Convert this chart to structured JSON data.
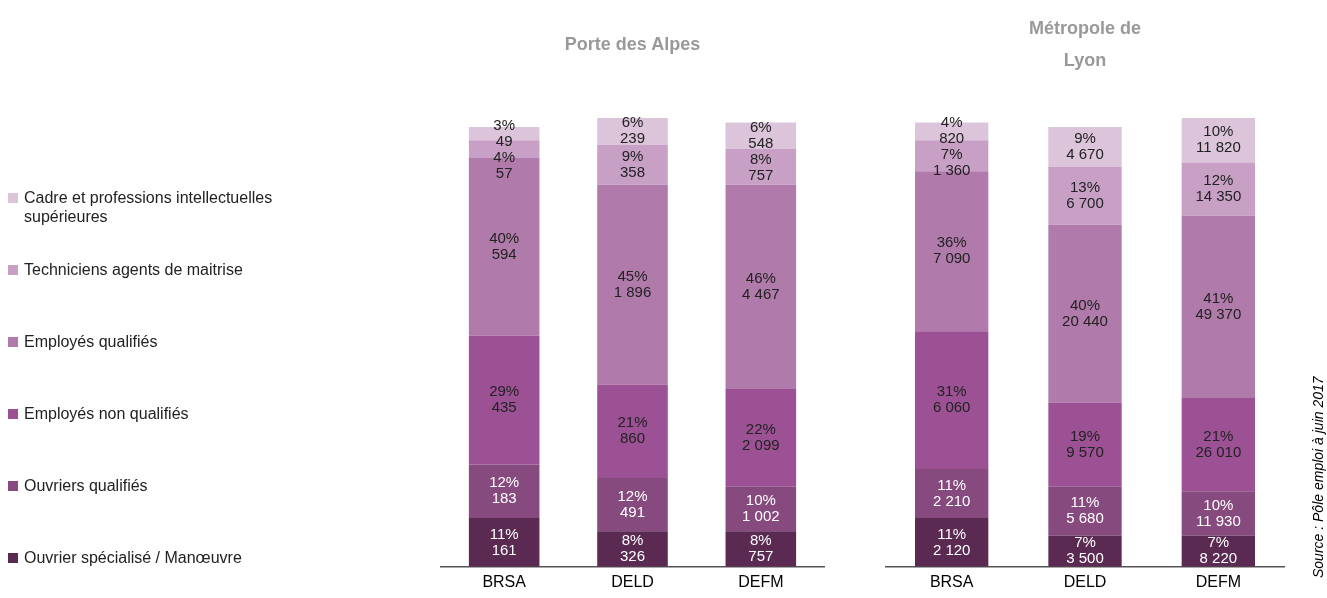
{
  "chart_data": [
    {
      "type": "bar",
      "title": "Porte des Alpes",
      "categories": [
        "BRSA",
        "DELD",
        "DEFM"
      ],
      "stacked": true,
      "ylim": [
        0,
        101
      ],
      "tick_labels": "x",
      "grid": false,
      "legend": "left",
      "series": [
        {
          "name": "Ouvrier spécialisé / Manœuvre",
          "color": "#5a2a52",
          "values": [
            11,
            8,
            8
          ],
          "value_labels": [
            "11%\n161",
            "8%\n326",
            "8%\n757"
          ]
        },
        {
          "name": "Ouvriers qualifiés",
          "color": "#874a7e",
          "values": [
            12,
            12,
            10
          ],
          "value_labels": [
            "12%\n183",
            "12%\n491",
            "10%\n1 002"
          ]
        },
        {
          "name": "Employés non qualifiés",
          "color": "#9c5194",
          "values": [
            29,
            21,
            22
          ],
          "value_labels": [
            "29%\n435",
            "21%\n860",
            "22%\n2 099"
          ]
        },
        {
          "name": "Employés qualifiés",
          "color": "#b07aab",
          "values": [
            40,
            45,
            46
          ],
          "value_labels": [
            "40%\n594",
            "45%\n1 896",
            "46%\n4 467"
          ]
        },
        {
          "name": "Techniciens agents de maitrise",
          "color": "#c8a0c5",
          "values": [
            4,
            9,
            8
          ],
          "value_labels": [
            "4%\n57",
            "9%\n358",
            "8%\n757"
          ]
        },
        {
          "name": "Cadre et professions intellectuelles supérieures",
          "color": "#dcc4da",
          "values": [
            3,
            6,
            6
          ],
          "value_labels": [
            "3%\n49",
            "6%\n239",
            "6%\n548"
          ]
        }
      ]
    },
    {
      "type": "bar",
      "title": "Métropole de Lyon",
      "categories": [
        "BRSA",
        "DELD",
        "DEFM"
      ],
      "stacked": true,
      "ylim": [
        0,
        101
      ],
      "tick_labels": "x",
      "grid": false,
      "annotations": [
        "Source : Pôle emploi à juin 2017"
      ],
      "series": [
        {
          "color": "#5a2a52",
          "values": [
            11,
            7,
            7
          ],
          "value_labels": [
            "11%\n2 120",
            "7%\n3 500",
            "7%\n8 220"
          ]
        },
        {
          "color": "#874a7e",
          "values": [
            11,
            11,
            10
          ],
          "value_labels": [
            "11%\n2 210",
            "11%\n5 680",
            "10%\n11 930"
          ]
        },
        {
          "color": "#9c5194",
          "values": [
            31,
            19,
            21
          ],
          "value_labels": [
            "31%\n6 060",
            "19%\n9 570",
            "21%\n26 010"
          ]
        },
        {
          "color": "#b07aab",
          "values": [
            36,
            40,
            41
          ],
          "value_labels": [
            "36%\n7 090",
            "40%\n20 440",
            "41%\n49 370"
          ]
        },
        {
          "color": "#c8a0c5",
          "values": [
            7,
            13,
            12
          ],
          "value_labels": [
            "7%\n1 360",
            "13%\n6 700",
            "12%\n14 350"
          ]
        },
        {
          "color": "#dcc4da",
          "values": [
            4,
            9,
            10
          ],
          "value_labels": [
            "4%\n820",
            "9%\n4 670",
            "10%\n11 820"
          ]
        }
      ]
    }
  ]
}
